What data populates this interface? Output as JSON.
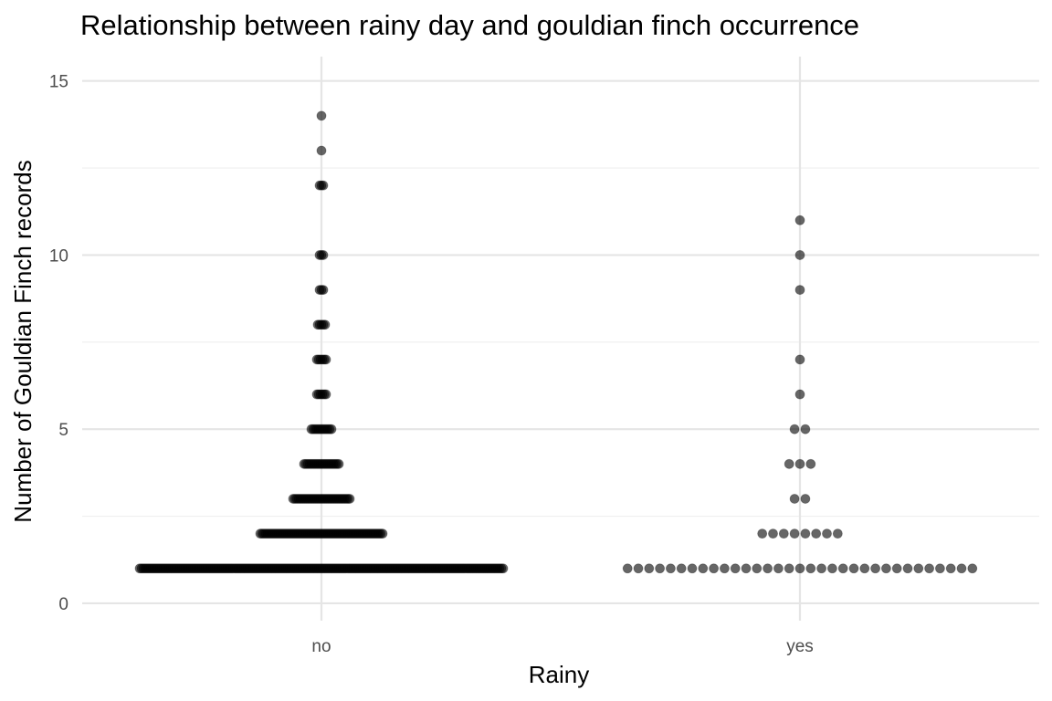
{
  "chart_data": {
    "type": "scatter",
    "subtype": "beeswarm",
    "title": "Relationship between rainy day and gouldian finch occurrence",
    "xlabel": "Rainy",
    "ylabel": "Number of Gouldian Finch records",
    "categories": [
      "no",
      "yes"
    ],
    "ylim": [
      -0.5,
      15.7
    ],
    "yticks": [
      0,
      5,
      10,
      15
    ],
    "grid": true,
    "legend": "none",
    "point_color": "#000000",
    "point_opacity": 0.6,
    "groups": [
      {
        "category": "no",
        "counts": [
          {
            "y": 1,
            "n": 200
          },
          {
            "y": 2,
            "n": 68
          },
          {
            "y": 3,
            "n": 32
          },
          {
            "y": 4,
            "n": 20
          },
          {
            "y": 5,
            "n": 12
          },
          {
            "y": 6,
            "n": 6
          },
          {
            "y": 7,
            "n": 6
          },
          {
            "y": 8,
            "n": 5
          },
          {
            "y": 9,
            "n": 3
          },
          {
            "y": 10,
            "n": 3
          },
          {
            "y": 12,
            "n": 3
          },
          {
            "y": 13,
            "n": 1
          },
          {
            "y": 14,
            "n": 1
          }
        ]
      },
      {
        "category": "yes",
        "counts": [
          {
            "y": 1,
            "n": 33
          },
          {
            "y": 2,
            "n": 8
          },
          {
            "y": 3,
            "n": 2
          },
          {
            "y": 4,
            "n": 3
          },
          {
            "y": 5,
            "n": 2
          },
          {
            "y": 6,
            "n": 1
          },
          {
            "y": 7,
            "n": 1
          },
          {
            "y": 9,
            "n": 1
          },
          {
            "y": 10,
            "n": 1
          },
          {
            "y": 11,
            "n": 1
          }
        ]
      }
    ]
  }
}
